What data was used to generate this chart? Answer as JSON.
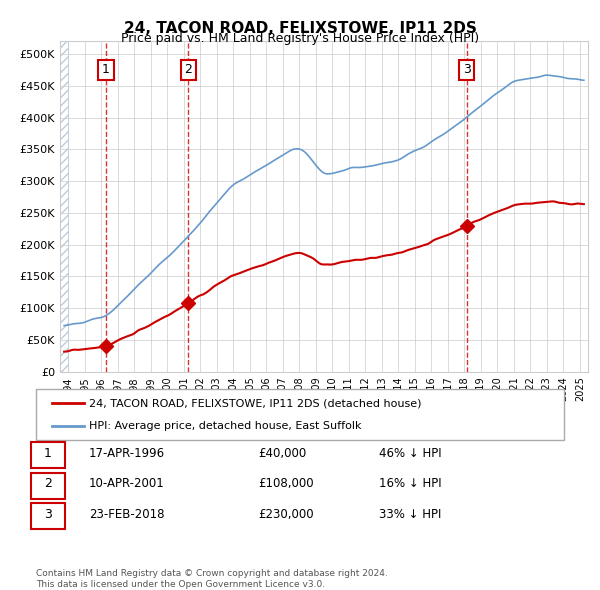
{
  "title": "24, TACON ROAD, FELIXSTOWE, IP11 2DS",
  "subtitle": "Price paid vs. HM Land Registry's House Price Index (HPI)",
  "sales": [
    {
      "date_num": 1996.29,
      "price": 40000,
      "label": "1",
      "date_str": "17-APR-1996"
    },
    {
      "date_num": 2001.27,
      "price": 108000,
      "label": "2",
      "date_str": "10-APR-2001"
    },
    {
      "date_num": 2018.15,
      "price": 230000,
      "label": "3",
      "date_str": "23-FEB-2018"
    }
  ],
  "sale_color": "#cc0000",
  "hpi_color": "#5599cc",
  "hpi_line_color": "#6699cc",
  "vline_color": "#cc0000",
  "xlabel": "",
  "ylabel": "",
  "xlim": [
    1993.5,
    2025.5
  ],
  "ylim": [
    0,
    520000
  ],
  "yticks": [
    0,
    50000,
    100000,
    150000,
    200000,
    250000,
    300000,
    350000,
    400000,
    450000,
    500000
  ],
  "ytick_labels": [
    "£0",
    "£50K",
    "£100K",
    "£150K",
    "£200K",
    "£250K",
    "£300K",
    "£350K",
    "£400K",
    "£450K",
    "£500K"
  ],
  "legend_label_sales": "24, TACON ROAD, FELIXSTOWE, IP11 2DS (detached house)",
  "legend_label_hpi": "HPI: Average price, detached house, East Suffolk",
  "table_rows": [
    [
      "1",
      "17-APR-1996",
      "£40,000",
      "46% ↓ HPI"
    ],
    [
      "2",
      "10-APR-2001",
      "£108,000",
      "16% ↓ HPI"
    ],
    [
      "3",
      "23-FEB-2018",
      "£230,000",
      "33% ↓ HPI"
    ]
  ],
  "footnote": "Contains HM Land Registry data © Crown copyright and database right 2024.\nThis data is licensed under the Open Government Licence v3.0.",
  "hatch_color": "#cccccc",
  "grid_color": "#cccccc",
  "bg_hatch_color": "#e8eef4"
}
